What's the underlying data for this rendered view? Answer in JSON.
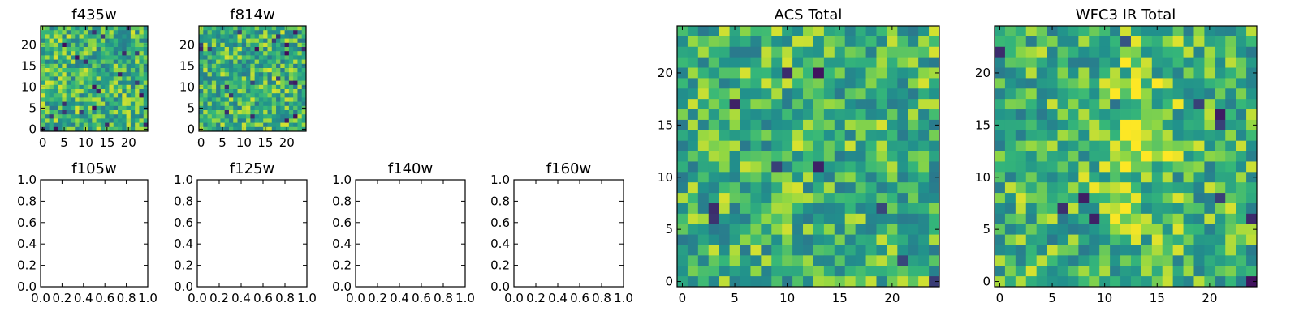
{
  "chart_data": [
    {
      "type": "heatmap",
      "title": "f435w",
      "xticks": [
        "0",
        "5",
        "10",
        "15",
        "20"
      ],
      "yticks": [
        "0",
        "5",
        "10",
        "15",
        "20"
      ],
      "xlim": [
        -0.5,
        24.5
      ],
      "ylim": [
        -0.5,
        24.5
      ],
      "grid": false,
      "colormap": "viridis",
      "image_size": [
        25,
        25
      ],
      "pixel_values": "random noise field; exact per-pixel values not legible"
    },
    {
      "type": "heatmap",
      "title": "f814w",
      "xticks": [
        "0",
        "5",
        "10",
        "15",
        "20"
      ],
      "yticks": [
        "0",
        "5",
        "10",
        "15",
        "20"
      ],
      "xlim": [
        -0.5,
        24.5
      ],
      "ylim": [
        -0.5,
        24.5
      ],
      "grid": false,
      "colormap": "viridis",
      "image_size": [
        25,
        25
      ],
      "pixel_values": "random noise field; exact per-pixel values not legible"
    },
    {
      "type": "scatter",
      "title": "f105w",
      "xticks": [
        "0.0",
        "0.2",
        "0.4",
        "0.6",
        "0.8",
        "1.0"
      ],
      "yticks": [
        "0.0",
        "0.2",
        "0.4",
        "0.6",
        "0.8",
        "1.0"
      ],
      "xlim": [
        0,
        1
      ],
      "ylim": [
        0,
        1
      ],
      "grid": false,
      "series": []
    },
    {
      "type": "scatter",
      "title": "f125w",
      "xticks": [
        "0.0",
        "0.2",
        "0.4",
        "0.6",
        "0.8",
        "1.0"
      ],
      "yticks": [
        "0.0",
        "0.2",
        "0.4",
        "0.6",
        "0.8",
        "1.0"
      ],
      "xlim": [
        0,
        1
      ],
      "ylim": [
        0,
        1
      ],
      "grid": false,
      "series": []
    },
    {
      "type": "scatter",
      "title": "f140w",
      "xticks": [
        "0.0",
        "0.2",
        "0.4",
        "0.6",
        "0.8",
        "1.0"
      ],
      "yticks": [
        "0.0",
        "0.2",
        "0.4",
        "0.6",
        "0.8",
        "1.0"
      ],
      "xlim": [
        0,
        1
      ],
      "ylim": [
        0,
        1
      ],
      "grid": false,
      "series": []
    },
    {
      "type": "scatter",
      "title": "f160w",
      "xticks": [
        "0.0",
        "0.2",
        "0.4",
        "0.6",
        "0.8",
        "1.0"
      ],
      "yticks": [
        "0.0",
        "0.2",
        "0.4",
        "0.6",
        "0.8",
        "1.0"
      ],
      "xlim": [
        0,
        1
      ],
      "ylim": [
        0,
        1
      ],
      "grid": false,
      "series": []
    },
    {
      "type": "heatmap",
      "title": "ACS Total",
      "xticks": [
        "0",
        "5",
        "10",
        "15",
        "20"
      ],
      "yticks": [
        "0",
        "5",
        "10",
        "15",
        "20"
      ],
      "xlim": [
        -0.5,
        24.5
      ],
      "ylim": [
        -0.5,
        24.5
      ],
      "grid": false,
      "colormap": "viridis",
      "image_size": [
        25,
        25
      ],
      "pixel_values": "random noise field; exact per-pixel values not legible"
    },
    {
      "type": "heatmap",
      "title": "WFC3 IR Total",
      "xticks": [
        "0",
        "5",
        "10",
        "15",
        "20"
      ],
      "yticks": [
        "0",
        "5",
        "10",
        "15",
        "20"
      ],
      "xlim": [
        -0.5,
        24.5
      ],
      "ylim": [
        -0.5,
        24.5
      ],
      "grid": false,
      "colormap": "viridis",
      "image_size": [
        25,
        25
      ],
      "pixel_values": "random noise field with brighter region near center; exact per-pixel values not legible"
    }
  ],
  "colors": {
    "viridis_dark": "#440154",
    "viridis_blue": "#31688e",
    "viridis_teal": "#21918c",
    "viridis_green": "#35b779",
    "viridis_lime": "#90d743",
    "viridis_yellow": "#fde725"
  }
}
